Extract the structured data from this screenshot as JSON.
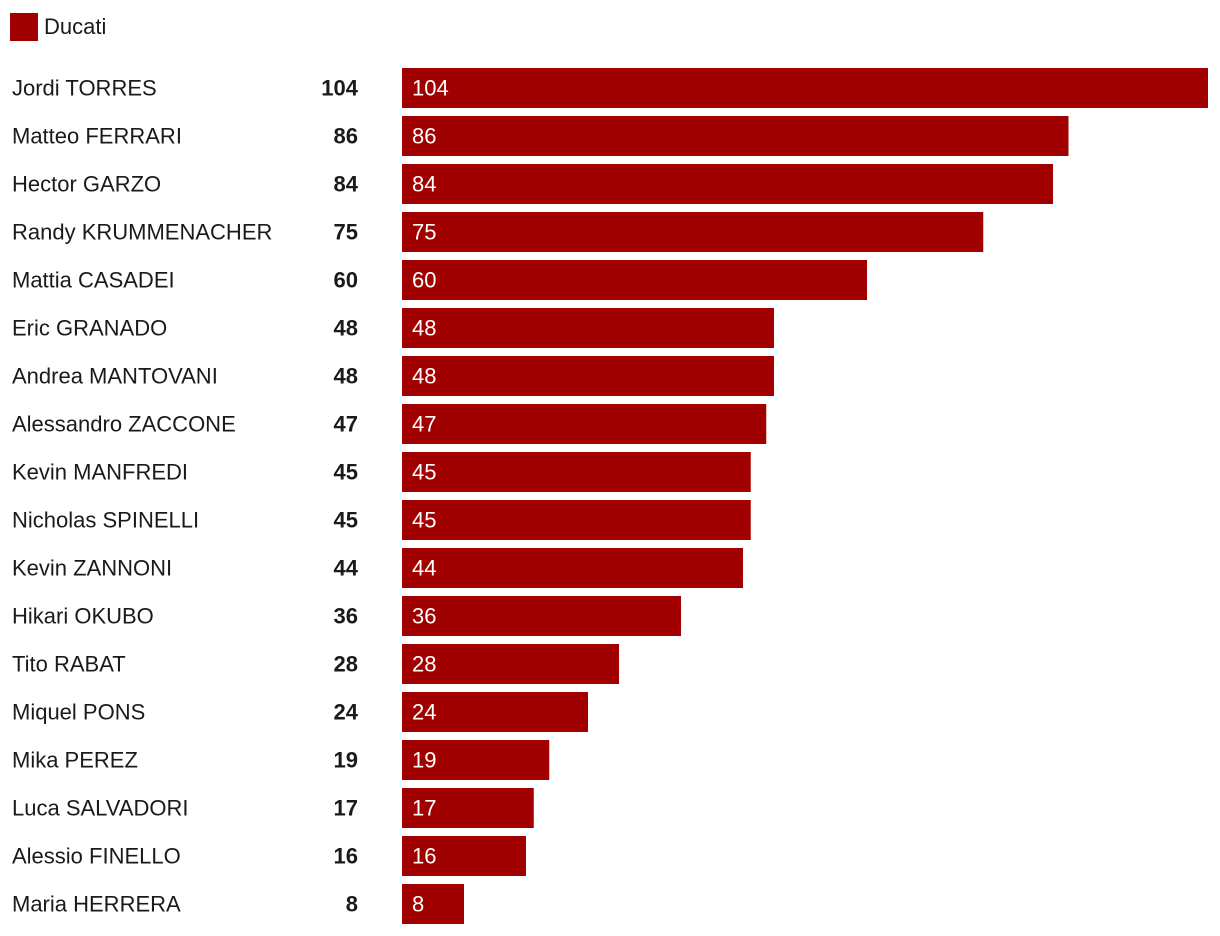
{
  "legend": {
    "label": "Ducati",
    "color": "#a00000"
  },
  "chart_data": {
    "type": "bar",
    "orientation": "horizontal",
    "categories": [
      "Jordi TORRES",
      "Matteo FERRARI",
      "Hector GARZO",
      "Randy KRUMMENACHER",
      "Mattia CASADEI",
      "Eric GRANADO",
      "Andrea MANTOVANI",
      "Alessandro ZACCONE",
      "Kevin MANFREDI",
      "Nicholas SPINELLI",
      "Kevin ZANNONI",
      "Hikari OKUBO",
      "Tito RABAT",
      "Miquel PONS",
      "Mika PEREZ",
      "Luca SALVADORI",
      "Alessio FINELLO",
      "Maria HERRERA"
    ],
    "series": [
      {
        "name": "Ducati",
        "color": "#a00000",
        "values": [
          104,
          86,
          84,
          75,
          60,
          48,
          48,
          47,
          45,
          45,
          44,
          36,
          28,
          24,
          19,
          17,
          16,
          8
        ]
      }
    ],
    "totals": [
      104,
      86,
      84,
      75,
      60,
      48,
      48,
      47,
      45,
      45,
      44,
      36,
      28,
      24,
      19,
      17,
      16,
      8
    ],
    "xlim": [
      0,
      104
    ],
    "grid": false,
    "legend_position": "top-left"
  }
}
